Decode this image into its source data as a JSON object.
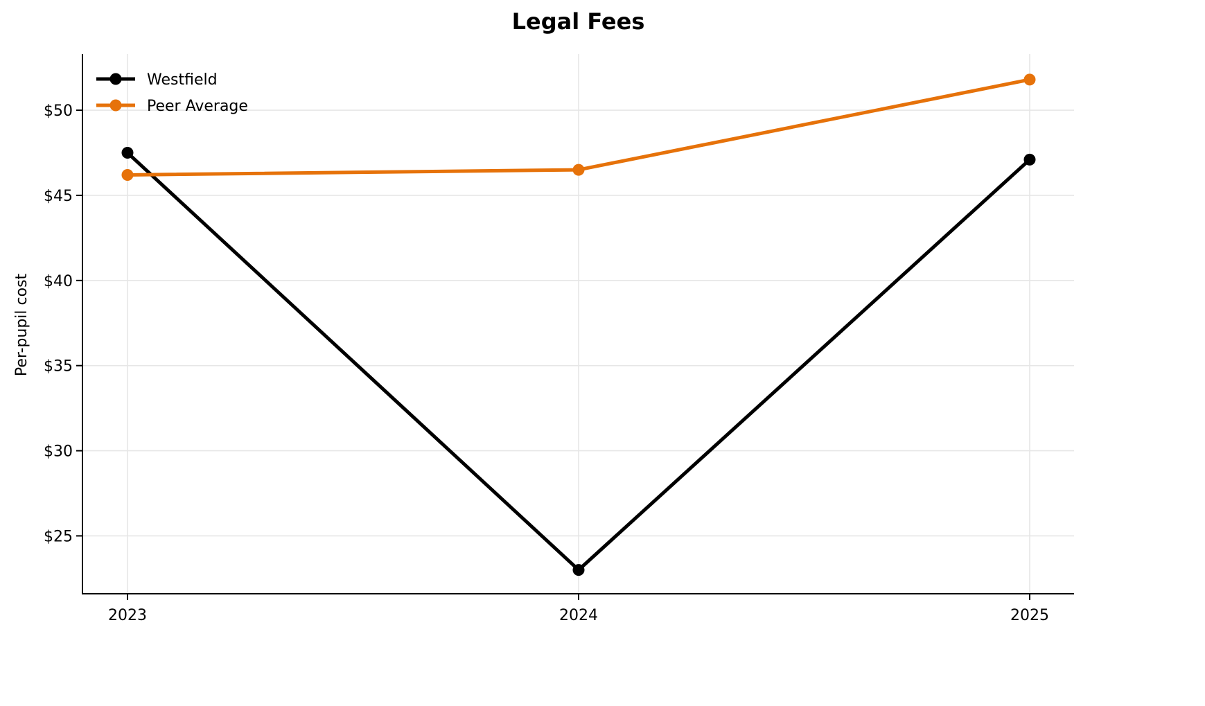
{
  "chart_data": {
    "type": "line",
    "title": "Legal Fees",
    "xlabel": "",
    "ylabel": "Per-pupil cost",
    "categories": [
      "2023",
      "2024",
      "2025"
    ],
    "series": [
      {
        "name": "Westfield",
        "color": "#000000",
        "values": [
          47.5,
          23.0,
          47.1
        ]
      },
      {
        "name": "Peer Average",
        "color": "#e6720a",
        "values": [
          46.2,
          46.5,
          51.8
        ]
      }
    ],
    "yticks": [
      25,
      30,
      35,
      40,
      45,
      50
    ],
    "ytick_labels": [
      "$25",
      "$30",
      "$35",
      "$40",
      "$45",
      "$50"
    ],
    "ylim": [
      21.6,
      53.3
    ],
    "grid": true,
    "legend_position": "upper left"
  }
}
